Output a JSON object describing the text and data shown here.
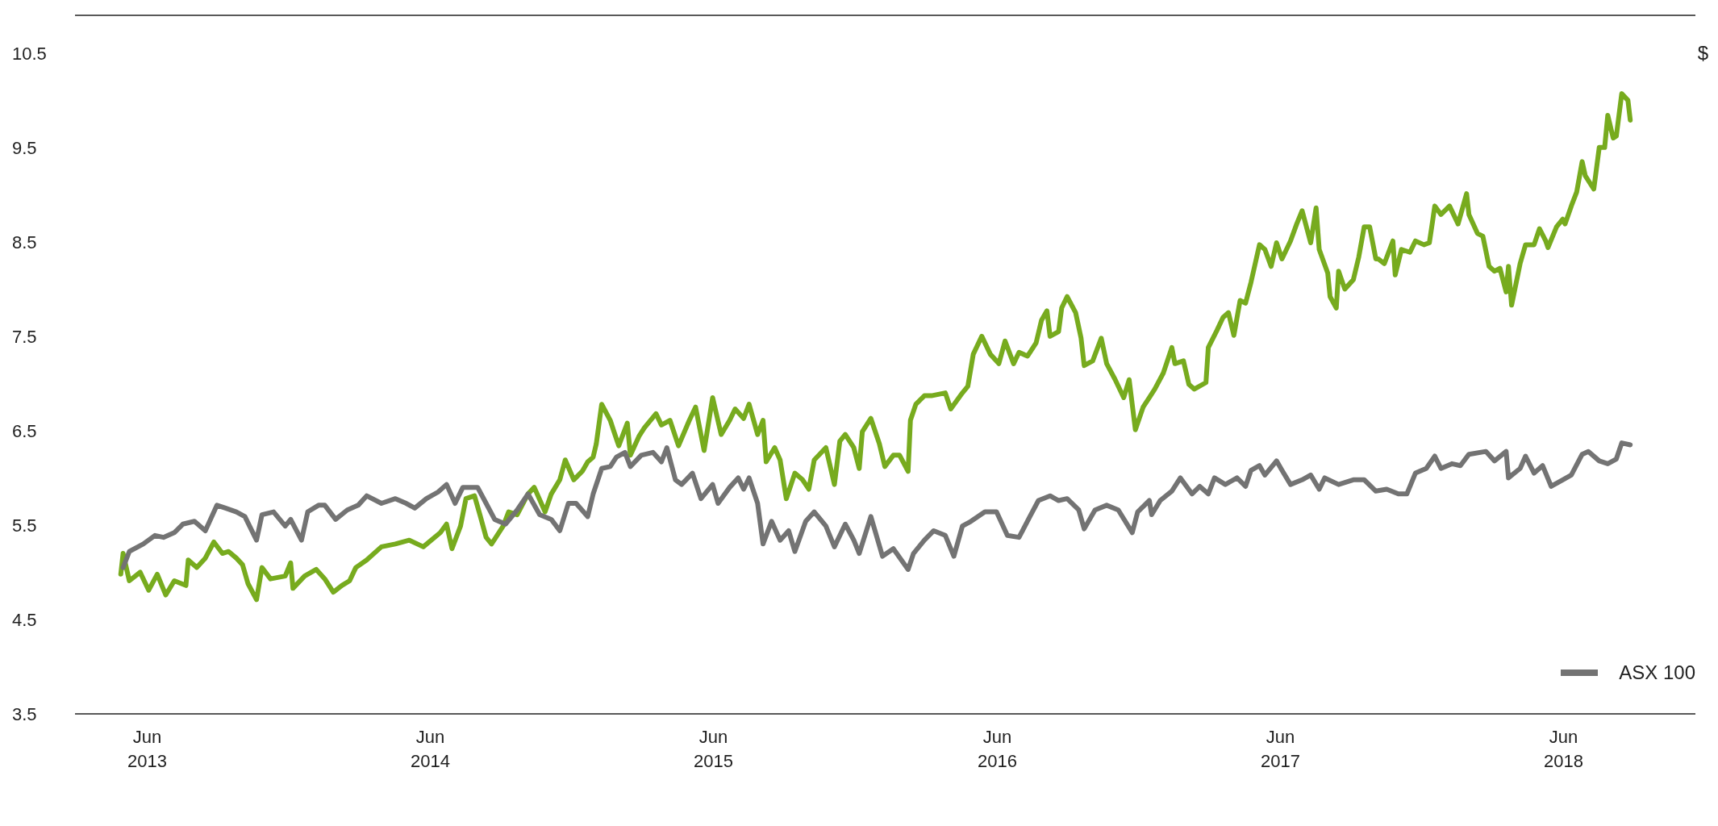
{
  "chart_data": {
    "type": "line",
    "ylabel": "$",
    "xlim": [
      "2013-02-28",
      "2018-11-18"
    ],
    "xticks": [
      {
        "value": "2013-06-01",
        "label": "Jun 2013"
      },
      {
        "value": "2014-06-01",
        "label": "Jun 2014"
      },
      {
        "value": "2015-06-01",
        "label": "Jun 2015"
      },
      {
        "value": "2016-06-01",
        "label": "Jun 2016"
      },
      {
        "value": "2017-06-01",
        "label": "Jun 2017"
      },
      {
        "value": "2018-06-01",
        "label": "Jun 2018"
      }
    ],
    "ylim": [
      3.5,
      10.9
    ],
    "yticks": [
      3.5,
      4.5,
      5.5,
      6.5,
      7.5,
      8.5,
      9.5,
      10.5
    ],
    "legend": "bottom right",
    "marker": "none",
    "line_style": "solid",
    "series": [
      {
        "color": "#77ab1e",
        "x": [
          "2013-04-28",
          "2013-05-01",
          "2013-05-09",
          "2013-05-23",
          "2013-06-03",
          "2013-06-14",
          "2013-06-25",
          "2013-07-06",
          "2013-07-21",
          "2013-07-24",
          "2013-08-04",
          "2013-08-15",
          "2013-08-26",
          "2013-09-06",
          "2013-09-14",
          "2013-09-24",
          "2013-10-02",
          "2013-10-09",
          "2013-10-20",
          "2013-10-27",
          "2013-11-07",
          "2013-11-26",
          "2013-12-03",
          "2013-12-06",
          "2013-12-21",
          "2014-01-05",
          "2014-01-16",
          "2014-01-27",
          "2014-02-07",
          "2014-02-17",
          "2014-02-25",
          "2014-03-11",
          "2014-03-30",
          "2014-04-17",
          "2014-05-05",
          "2014-05-23",
          "2014-06-14",
          "2014-06-22",
          "2014-06-29",
          "2014-07-10",
          "2014-07-17",
          "2014-07-28",
          "2014-08-04",
          "2014-08-12",
          "2014-08-19",
          "2014-09-03",
          "2014-09-10",
          "2014-09-21",
          "2014-10-05",
          "2014-10-13",
          "2014-10-27",
          "2014-11-04",
          "2014-11-15",
          "2014-11-22",
          "2014-12-03",
          "2014-12-14",
          "2014-12-21",
          "2014-12-28",
          "2015-01-01",
          "2015-01-08",
          "2015-01-19",
          "2015-01-23",
          "2015-01-30",
          "2015-02-10",
          "2015-02-14",
          "2015-02-25",
          "2015-03-04",
          "2015-03-19",
          "2015-03-26",
          "2015-04-06",
          "2015-04-17",
          "2015-05-01",
          "2015-05-09",
          "2015-05-20",
          "2015-05-31",
          "2015-06-11",
          "2015-06-22",
          "2015-06-29",
          "2015-07-10",
          "2015-07-17",
          "2015-07-28",
          "2015-08-04",
          "2015-08-08",
          "2015-08-19",
          "2015-08-26",
          "2015-09-03",
          "2015-09-14",
          "2015-09-24",
          "2015-10-02",
          "2015-10-09",
          "2015-10-24",
          "2015-11-04",
          "2015-11-11",
          "2015-11-18",
          "2015-11-29",
          "2015-12-06",
          "2015-12-10",
          "2015-12-21",
          "2016-01-01",
          "2016-01-08",
          "2016-01-19",
          "2016-01-27",
          "2016-02-07",
          "2016-02-10",
          "2016-02-17",
          "2016-02-28",
          "2016-03-08",
          "2016-03-26",
          "2016-04-02",
          "2016-04-17",
          "2016-04-24",
          "2016-05-01",
          "2016-05-12",
          "2016-05-23",
          "2016-06-03",
          "2016-06-11",
          "2016-06-22",
          "2016-06-29",
          "2016-07-10",
          "2016-07-21",
          "2016-07-28",
          "2016-08-04",
          "2016-08-08",
          "2016-08-19",
          "2016-08-23",
          "2016-08-30",
          "2016-09-10",
          "2016-09-17",
          "2016-09-21",
          "2016-10-02",
          "2016-10-13",
          "2016-10-20",
          "2016-10-31",
          "2016-11-11",
          "2016-11-18",
          "2016-11-26",
          "2016-12-06",
          "2016-12-14",
          "2016-12-21",
          "2017-01-01",
          "2017-01-12",
          "2017-01-16",
          "2017-01-27",
          "2017-02-03",
          "2017-02-10",
          "2017-02-25",
          "2017-02-28",
          "2017-03-11",
          "2017-03-19",
          "2017-03-26",
          "2017-04-02",
          "2017-04-10",
          "2017-04-17",
          "2017-04-24",
          "2017-05-05",
          "2017-05-12",
          "2017-05-20",
          "2017-05-27",
          "2017-06-03",
          "2017-06-14",
          "2017-06-22",
          "2017-06-29",
          "2017-07-10",
          "2017-07-17",
          "2017-07-21",
          "2017-08-01",
          "2017-08-04",
          "2017-08-12",
          "2017-08-15",
          "2017-08-23",
          "2017-09-03",
          "2017-09-10",
          "2017-09-17",
          "2017-09-24",
          "2017-10-02",
          "2017-10-05",
          "2017-10-13",
          "2017-10-24",
          "2017-10-27",
          "2017-11-04",
          "2017-11-15",
          "2017-11-22",
          "2017-12-03",
          "2017-12-10",
          "2017-12-14",
          "2017-12-17",
          "2017-12-25",
          "2018-01-05",
          "2018-01-16",
          "2018-01-27",
          "2018-01-30",
          "2018-02-10",
          "2018-02-17",
          "2018-02-25",
          "2018-03-04",
          "2018-03-11",
          "2018-03-19",
          "2018-03-22",
          "2018-03-26",
          "2018-04-06",
          "2018-04-13",
          "2018-04-24",
          "2018-05-01",
          "2018-05-09",
          "2018-05-12",
          "2018-05-23",
          "2018-05-31",
          "2018-06-03",
          "2018-06-11",
          "2018-06-18",
          "2018-06-25",
          "2018-06-29",
          "2018-07-10",
          "2018-07-17",
          "2018-07-24",
          "2018-07-28",
          "2018-08-04",
          "2018-08-08",
          "2018-08-15",
          "2018-08-23",
          "2018-08-26"
        ],
        "values": [
          4.98,
          5.2,
          4.91,
          5.0,
          4.81,
          4.98,
          4.76,
          4.91,
          4.86,
          5.13,
          5.05,
          5.15,
          5.32,
          5.2,
          5.22,
          5.15,
          5.08,
          4.88,
          4.71,
          5.05,
          4.93,
          4.96,
          5.1,
          4.83,
          4.96,
          5.03,
          4.93,
          4.79,
          4.86,
          4.91,
          5.05,
          5.13,
          5.27,
          5.3,
          5.34,
          5.27,
          5.42,
          5.51,
          5.25,
          5.49,
          5.78,
          5.81,
          5.61,
          5.37,
          5.3,
          5.49,
          5.64,
          5.61,
          5.83,
          5.9,
          5.64,
          5.83,
          5.98,
          6.19,
          5.98,
          6.07,
          6.17,
          6.22,
          6.36,
          6.78,
          6.61,
          6.51,
          6.34,
          6.58,
          6.24,
          6.44,
          6.53,
          6.68,
          6.56,
          6.61,
          6.34,
          6.61,
          6.75,
          6.29,
          6.85,
          6.46,
          6.61,
          6.73,
          6.63,
          6.78,
          6.46,
          6.61,
          6.17,
          6.32,
          6.19,
          5.78,
          6.05,
          5.98,
          5.88,
          6.19,
          6.32,
          5.93,
          6.39,
          6.46,
          6.32,
          6.1,
          6.49,
          6.63,
          6.36,
          6.12,
          6.24,
          6.24,
          6.07,
          6.61,
          6.78,
          6.87,
          6.87,
          6.9,
          6.73,
          6.9,
          6.97,
          7.31,
          7.5,
          7.31,
          7.21,
          7.45,
          7.21,
          7.33,
          7.29,
          7.43,
          7.67,
          7.77,
          7.5,
          7.55,
          7.8,
          7.92,
          7.75,
          7.48,
          7.19,
          7.24,
          7.48,
          7.21,
          7.04,
          6.85,
          7.04,
          6.51,
          6.75,
          6.85,
          6.94,
          7.11,
          7.38,
          7.21,
          7.24,
          6.99,
          6.94,
          7.01,
          7.38,
          7.56,
          7.7,
          7.75,
          7.51,
          7.88,
          7.85,
          8.07,
          8.47,
          8.42,
          8.24,
          8.49,
          8.32,
          8.51,
          8.69,
          8.83,
          8.49,
          8.86,
          8.42,
          8.17,
          7.92,
          7.8,
          8.19,
          8.0,
          8.1,
          8.34,
          8.66,
          8.66,
          8.32,
          8.32,
          8.27,
          8.51,
          8.15,
          8.42,
          8.39,
          8.51,
          8.47,
          8.49,
          8.71,
          8.88,
          8.79,
          8.88,
          8.69,
          9.01,
          8.79,
          8.59,
          8.56,
          8.24,
          8.19,
          8.22,
          7.97,
          8.24,
          7.83,
          8.27,
          8.47,
          8.47,
          8.64,
          8.51,
          8.44,
          8.66,
          8.74,
          8.69,
          8.88,
          9.03,
          9.35,
          9.2,
          9.06,
          9.5,
          9.5,
          9.84,
          9.6,
          9.62,
          10.07,
          10.0,
          9.79
        ]
      },
      {
        "name": "ASX 100",
        "color": "#737373",
        "x": [
          "2013-05-01",
          "2013-05-09",
          "2013-05-27",
          "2013-06-11",
          "2013-06-22",
          "2013-07-06",
          "2013-07-17",
          "2013-08-01",
          "2013-08-15",
          "2013-08-30",
          "2013-09-10",
          "2013-09-24",
          "2013-10-05",
          "2013-10-20",
          "2013-10-27",
          "2013-11-11",
          "2013-11-26",
          "2013-12-03",
          "2013-12-17",
          "2013-12-25",
          "2014-01-08",
          "2014-01-16",
          "2014-01-30",
          "2014-02-14",
          "2014-02-28",
          "2014-03-11",
          "2014-03-30",
          "2014-04-17",
          "2014-05-01",
          "2014-05-12",
          "2014-05-27",
          "2014-06-11",
          "2014-06-22",
          "2014-07-03",
          "2014-07-13",
          "2014-08-01",
          "2014-08-12",
          "2014-08-23",
          "2014-09-06",
          "2014-09-21",
          "2014-10-05",
          "2014-10-20",
          "2014-11-04",
          "2014-11-15",
          "2014-11-26",
          "2014-12-06",
          "2014-12-21",
          "2014-12-28",
          "2015-01-08",
          "2015-01-19",
          "2015-01-27",
          "2015-02-07",
          "2015-02-14",
          "2015-02-28",
          "2015-03-15",
          "2015-03-26",
          "2015-04-02",
          "2015-04-13",
          "2015-04-21",
          "2015-05-05",
          "2015-05-16",
          "2015-05-31",
          "2015-06-07",
          "2015-06-22",
          "2015-07-03",
          "2015-07-10",
          "2015-07-17",
          "2015-07-28",
          "2015-08-04",
          "2015-08-15",
          "2015-08-26",
          "2015-09-06",
          "2015-09-14",
          "2015-09-28",
          "2015-10-09",
          "2015-10-24",
          "2015-11-04",
          "2015-11-18",
          "2015-11-29",
          "2015-12-06",
          "2015-12-21",
          "2016-01-05",
          "2016-01-19",
          "2016-02-07",
          "2016-02-14",
          "2016-02-28",
          "2016-03-11",
          "2016-03-26",
          "2016-04-06",
          "2016-04-17",
          "2016-04-28",
          "2016-05-16",
          "2016-05-31",
          "2016-06-14",
          "2016-06-29",
          "2016-07-13",
          "2016-07-24",
          "2016-08-08",
          "2016-08-19",
          "2016-08-30",
          "2016-09-14",
          "2016-09-21",
          "2016-10-05",
          "2016-10-20",
          "2016-11-04",
          "2016-11-22",
          "2016-11-29",
          "2016-12-14",
          "2016-12-17",
          "2016-12-28",
          "2017-01-12",
          "2017-01-23",
          "2017-02-07",
          "2017-02-17",
          "2017-02-28",
          "2017-03-08",
          "2017-03-22",
          "2017-04-06",
          "2017-04-17",
          "2017-04-24",
          "2017-05-05",
          "2017-05-12",
          "2017-05-27",
          "2017-06-03",
          "2017-06-14",
          "2017-06-29",
          "2017-07-10",
          "2017-07-21",
          "2017-07-28",
          "2017-08-15",
          "2017-09-03",
          "2017-09-17",
          "2017-10-02",
          "2017-10-16",
          "2017-10-31",
          "2017-11-11",
          "2017-11-22",
          "2017-12-06",
          "2017-12-17",
          "2017-12-25",
          "2018-01-08",
          "2018-01-19",
          "2018-01-30",
          "2018-02-21",
          "2018-03-04",
          "2018-03-19",
          "2018-03-22",
          "2018-04-06",
          "2018-04-13",
          "2018-04-24",
          "2018-05-05",
          "2018-05-16",
          "2018-05-31",
          "2018-06-11",
          "2018-06-25",
          "2018-07-03",
          "2018-07-17",
          "2018-07-28",
          "2018-08-08",
          "2018-08-15",
          "2018-08-26"
        ],
        "values": [
          5.05,
          5.22,
          5.3,
          5.39,
          5.37,
          5.42,
          5.51,
          5.54,
          5.44,
          5.71,
          5.68,
          5.64,
          5.59,
          5.34,
          5.61,
          5.64,
          5.49,
          5.56,
          5.34,
          5.64,
          5.71,
          5.71,
          5.56,
          5.66,
          5.71,
          5.81,
          5.73,
          5.78,
          5.73,
          5.68,
          5.78,
          5.85,
          5.93,
          5.73,
          5.9,
          5.9,
          5.73,
          5.56,
          5.51,
          5.66,
          5.83,
          5.61,
          5.56,
          5.44,
          5.73,
          5.73,
          5.59,
          5.83,
          6.1,
          6.12,
          6.22,
          6.27,
          6.12,
          6.24,
          6.27,
          6.17,
          6.32,
          5.98,
          5.93,
          6.05,
          5.78,
          5.93,
          5.73,
          5.9,
          6.0,
          5.88,
          6.0,
          5.73,
          5.3,
          5.54,
          5.34,
          5.44,
          5.22,
          5.54,
          5.64,
          5.49,
          5.27,
          5.51,
          5.34,
          5.2,
          5.59,
          5.17,
          5.25,
          5.03,
          5.2,
          5.34,
          5.44,
          5.39,
          5.17,
          5.49,
          5.54,
          5.64,
          5.64,
          5.39,
          5.37,
          5.59,
          5.76,
          5.81,
          5.76,
          5.78,
          5.66,
          5.46,
          5.66,
          5.71,
          5.66,
          5.42,
          5.64,
          5.76,
          5.61,
          5.76,
          5.86,
          6.0,
          5.83,
          5.91,
          5.83,
          6.0,
          5.93,
          6.0,
          5.91,
          6.08,
          6.13,
          6.03,
          6.18,
          6.08,
          5.93,
          5.98,
          6.03,
          5.88,
          6.0,
          5.93,
          5.98,
          5.98,
          5.86,
          5.88,
          5.83,
          5.83,
          6.05,
          6.1,
          6.23,
          6.1,
          6.15,
          6.13,
          6.25,
          6.28,
          6.18,
          6.28,
          6.0,
          6.1,
          6.23,
          6.05,
          6.13,
          5.91,
          5.98,
          6.03,
          6.25,
          6.28,
          6.18,
          6.15,
          6.2,
          6.37,
          6.35
        ]
      }
    ]
  }
}
